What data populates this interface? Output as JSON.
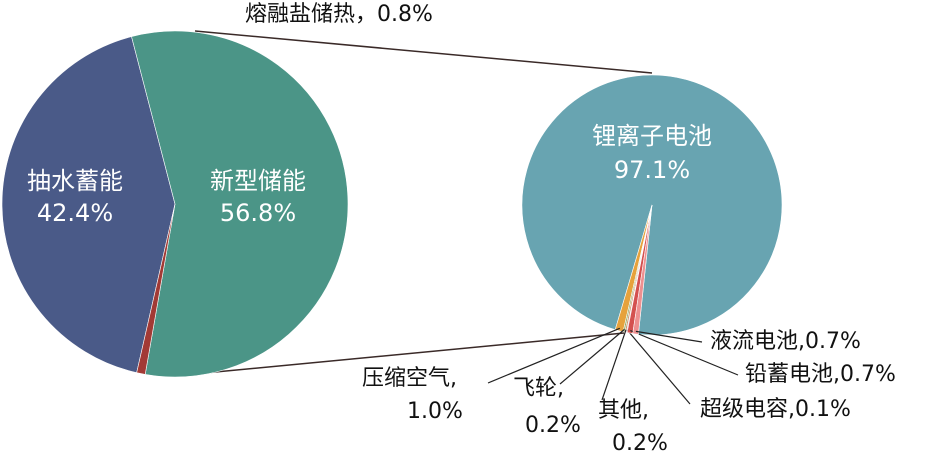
{
  "chart_data": [
    {
      "type": "pie",
      "categories": [
        "抽水蓄能",
        "新型储能",
        "熔融盐储热"
      ],
      "values": [
        42.4,
        56.8,
        0.8
      ],
      "value_labels": [
        "42.4%",
        "56.8%",
        "0.8%"
      ],
      "colors": [
        "#4a5a88",
        "#4b9587",
        "#a23a35"
      ],
      "separator": "，"
    },
    {
      "type": "pie",
      "categories": [
        "锂离子电池",
        "压缩空气",
        "飞轮",
        "其他",
        "超级电容",
        "铅蓄电池",
        "液流电池"
      ],
      "values": [
        97.1,
        1.0,
        0.2,
        0.2,
        0.1,
        0.7,
        0.7
      ],
      "value_labels": [
        "97.1%",
        "1.0%",
        "0.2%",
        "0.2%",
        "0.1%",
        "0.7%",
        "0.7%"
      ],
      "colors": [
        "#68a4b1",
        "#e6a23c",
        "#8fa65a",
        "#c98c5e",
        "#a45a8a",
        "#d4514f",
        "#ee9090"
      ],
      "separator": ","
    }
  ]
}
